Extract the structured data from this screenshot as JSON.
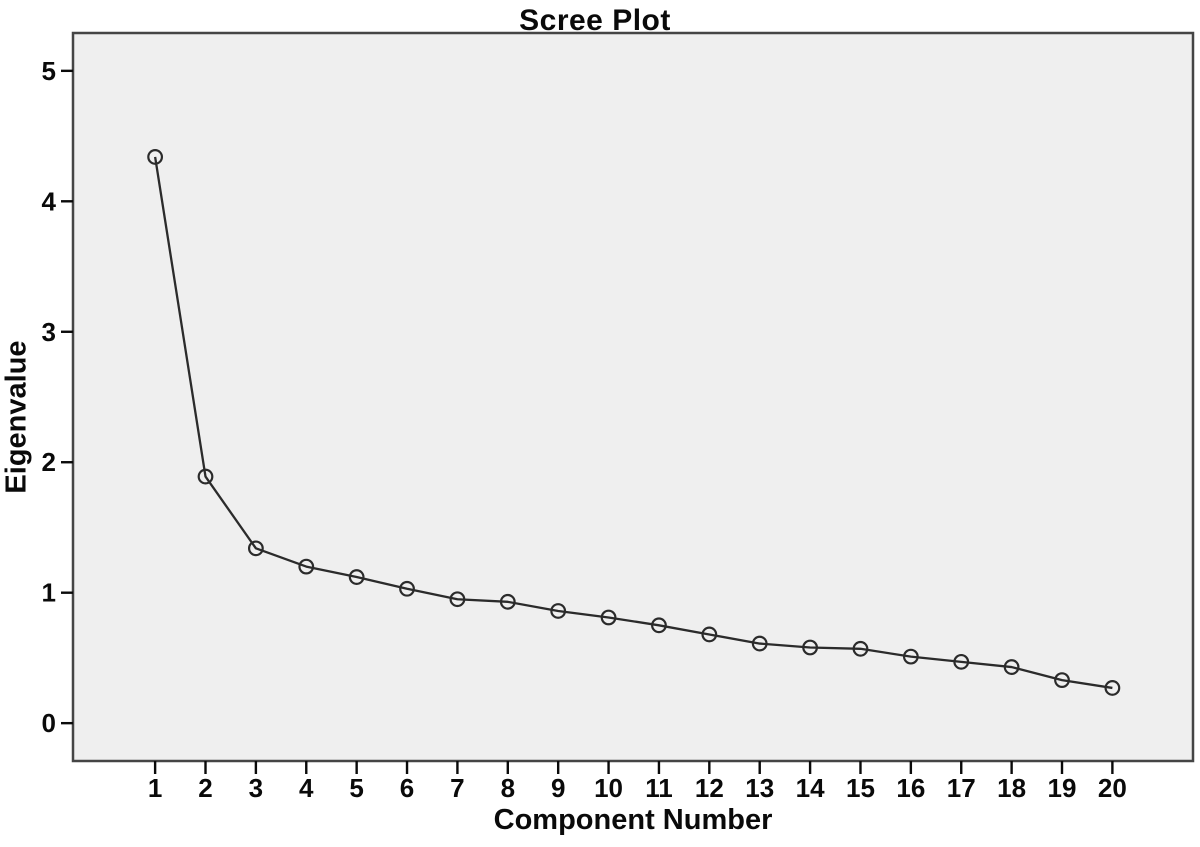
{
  "chart_data": {
    "type": "line",
    "title": "Scree Plot",
    "xlabel": "Component Number",
    "ylabel": "Eigenvalue",
    "x": [
      1,
      2,
      3,
      4,
      5,
      6,
      7,
      8,
      9,
      10,
      11,
      12,
      13,
      14,
      15,
      16,
      17,
      18,
      19,
      20
    ],
    "series": [
      {
        "name": "Eigenvalue",
        "values": [
          4.34,
          1.89,
          1.34,
          1.2,
          1.12,
          1.03,
          0.95,
          0.93,
          0.86,
          0.81,
          0.75,
          0.68,
          0.61,
          0.58,
          0.57,
          0.51,
          0.47,
          0.43,
          0.33,
          0.27
        ]
      }
    ],
    "x_tick_labels": [
      "1",
      "2",
      "3",
      "4",
      "5",
      "6",
      "7",
      "8",
      "9",
      "10",
      "11",
      "12",
      "13",
      "14",
      "15",
      "16",
      "17",
      "18",
      "19",
      "20"
    ],
    "y_ticks": [
      0,
      1,
      2,
      3,
      4,
      5
    ],
    "y_tick_labels": [
      "0",
      "1",
      "2",
      "3",
      "4",
      "5"
    ],
    "xlim": [
      -0.63,
      21.6
    ],
    "ylim": [
      -0.29,
      5.29
    ],
    "grid": false,
    "legend": "none",
    "marker": "open-circle",
    "colors": {
      "page_bg": "#ffffff",
      "plot_bg": "#efefef",
      "frame": "#454545",
      "line": "#2b2b2b",
      "marker_stroke": "#2b2b2b",
      "text": "#0a0a0a"
    }
  }
}
